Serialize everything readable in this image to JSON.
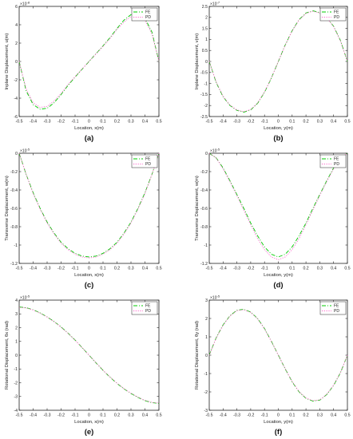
{
  "chart_data": [
    {
      "type": "line",
      "panel_label": "(a)",
      "xlabel": "Location, x(m)",
      "ylabel": "Inplane Displacement, u(m)",
      "scale_label": "×10",
      "scale_exp": "-8",
      "xlim": [
        -0.5,
        0.5
      ],
      "ylim": [
        -6,
        6
      ],
      "xticks": [
        "-0.5",
        "-0.4",
        "-0.3",
        "-0.2",
        "-0.1",
        "0",
        "0.1",
        "0.2",
        "0.3",
        "0.4",
        "0.5"
      ],
      "yticks": [
        "-6",
        "-4",
        "-2",
        "0",
        "2",
        "4",
        "6"
      ],
      "legend": "top-right",
      "series": [
        {
          "name": "FE",
          "color": "#00cc00",
          "dash": "dashdot",
          "x": [
            -0.5,
            -0.45,
            -0.4,
            -0.35,
            -0.3,
            -0.25,
            -0.2,
            -0.15,
            -0.1,
            -0.05,
            0,
            0.05,
            0.1,
            0.15,
            0.2,
            0.25,
            0.3,
            0.35,
            0.4,
            0.45,
            0.5
          ],
          "y": [
            0,
            -3.2,
            -4.7,
            -5.2,
            -5.1,
            -4.5,
            -3.6,
            -2.6,
            -1.7,
            -0.85,
            0,
            0.85,
            1.7,
            2.6,
            3.6,
            4.5,
            5.1,
            5.2,
            4.7,
            3.2,
            0
          ]
        },
        {
          "name": "PD",
          "color": "#ff66cc",
          "dash": "dotted",
          "x": [
            -0.5,
            -0.45,
            -0.4,
            -0.35,
            -0.3,
            -0.25,
            -0.2,
            -0.15,
            -0.1,
            -0.05,
            0,
            0.05,
            0.1,
            0.15,
            0.2,
            0.25,
            0.3,
            0.35,
            0.4,
            0.45,
            0.5
          ],
          "y": [
            0,
            -3.0,
            -4.5,
            -5.0,
            -4.9,
            -4.3,
            -3.5,
            -2.5,
            -1.65,
            -0.82,
            0,
            0.82,
            1.65,
            2.5,
            3.5,
            4.3,
            4.9,
            5.0,
            4.5,
            3.0,
            0
          ]
        }
      ]
    },
    {
      "type": "line",
      "panel_label": "(b)",
      "xlabel": "Location, y(m)",
      "ylabel": "Inplane Displacement, v(m)",
      "scale_label": "×10",
      "scale_exp": "-7",
      "xlim": [
        -0.5,
        0.5
      ],
      "ylim": [
        -2.5,
        2.5
      ],
      "xticks": [
        "-0.5",
        "-0.4",
        "-0.3",
        "-0.2",
        "-0.1",
        "0",
        "0.1",
        "0.2",
        "0.3",
        "0.4",
        "0.5"
      ],
      "yticks": [
        "-2.5",
        "-2",
        "-1.5",
        "-1",
        "-0.5",
        "0",
        "0.5",
        "1",
        "1.5",
        "2",
        "2.5"
      ],
      "legend": "top-right",
      "series": [
        {
          "name": "FE",
          "color": "#00cc00",
          "dash": "dashdot",
          "x": [
            -0.5,
            -0.45,
            -0.4,
            -0.35,
            -0.3,
            -0.25,
            -0.2,
            -0.15,
            -0.1,
            -0.05,
            0,
            0.05,
            0.1,
            0.15,
            0.2,
            0.25,
            0.3,
            0.35,
            0.4,
            0.45,
            0.5
          ],
          "y": [
            0,
            -0.95,
            -1.6,
            -2.0,
            -2.22,
            -2.3,
            -2.2,
            -1.9,
            -1.4,
            -0.75,
            0,
            0.75,
            1.4,
            1.9,
            2.2,
            2.3,
            2.22,
            2.0,
            1.6,
            0.95,
            0
          ]
        },
        {
          "name": "PD",
          "color": "#ff66cc",
          "dash": "dotted",
          "x": [
            -0.5,
            -0.45,
            -0.4,
            -0.35,
            -0.3,
            -0.25,
            -0.2,
            -0.15,
            -0.1,
            -0.05,
            0,
            0.05,
            0.1,
            0.15,
            0.2,
            0.25,
            0.3,
            0.35,
            0.4,
            0.45,
            0.5
          ],
          "y": [
            0,
            -0.93,
            -1.58,
            -1.98,
            -2.2,
            -2.28,
            -2.18,
            -1.88,
            -1.38,
            -0.74,
            0,
            0.74,
            1.38,
            1.88,
            2.18,
            2.28,
            2.2,
            1.98,
            1.58,
            0.93,
            0
          ]
        }
      ]
    },
    {
      "type": "line",
      "panel_label": "(c)",
      "xlabel": "Location, x(m)",
      "ylabel": "Transverse Displacement, w(m)",
      "scale_label": "×10",
      "scale_exp": "-5",
      "xlim": [
        -0.5,
        0.5
      ],
      "ylim": [
        -1.2,
        0
      ],
      "xticks": [
        "-0.5",
        "-0.4",
        "-0.3",
        "-0.2",
        "-0.1",
        "0",
        "0.1",
        "0.2",
        "0.3",
        "0.4",
        "0.5"
      ],
      "yticks": [
        "-1.2",
        "-1",
        "-0.8",
        "-0.6",
        "-0.4",
        "-0.2",
        "0"
      ],
      "legend": "top-right",
      "series": [
        {
          "name": "FE",
          "color": "#00cc00",
          "dash": "dashdot",
          "x": [
            -0.5,
            -0.45,
            -0.4,
            -0.35,
            -0.3,
            -0.25,
            -0.2,
            -0.15,
            -0.1,
            -0.05,
            0,
            0.05,
            0.1,
            0.15,
            0.2,
            0.25,
            0.3,
            0.35,
            0.4,
            0.45,
            0.5
          ],
          "y": [
            0,
            -0.23,
            -0.43,
            -0.6,
            -0.75,
            -0.87,
            -0.97,
            -1.04,
            -1.09,
            -1.12,
            -1.13,
            -1.12,
            -1.09,
            -1.04,
            -0.97,
            -0.87,
            -0.75,
            -0.6,
            -0.43,
            -0.23,
            0
          ]
        },
        {
          "name": "PD",
          "color": "#ff66cc",
          "dash": "dotted",
          "x": [
            -0.5,
            -0.45,
            -0.4,
            -0.35,
            -0.3,
            -0.25,
            -0.2,
            -0.15,
            -0.1,
            -0.05,
            0,
            0.05,
            0.1,
            0.15,
            0.2,
            0.25,
            0.3,
            0.35,
            0.4,
            0.45,
            0.5
          ],
          "y": [
            0,
            -0.23,
            -0.44,
            -0.61,
            -0.76,
            -0.88,
            -0.98,
            -1.05,
            -1.1,
            -1.13,
            -1.14,
            -1.13,
            -1.1,
            -1.05,
            -0.98,
            -0.88,
            -0.76,
            -0.61,
            -0.44,
            -0.23,
            0
          ]
        }
      ]
    },
    {
      "type": "line",
      "panel_label": "(d)",
      "xlabel": "Location, y(m)",
      "ylabel": "Transverse Displacement, w(m)",
      "scale_label": "×10",
      "scale_exp": "-5",
      "xlim": [
        -0.5,
        0.5
      ],
      "ylim": [
        -1.2,
        0
      ],
      "xticks": [
        "-0.5",
        "-0.4",
        "-0.3",
        "-0.2",
        "-0.1",
        "0",
        "0.1",
        "0.2",
        "0.3",
        "0.4",
        "0.5"
      ],
      "yticks": [
        "-1.2",
        "-1",
        "-0.8",
        "-0.6",
        "-0.4",
        "-0.2",
        "0"
      ],
      "legend": "top-right",
      "series": [
        {
          "name": "FE",
          "color": "#00cc00",
          "dash": "dashdot",
          "x": [
            -0.5,
            -0.45,
            -0.4,
            -0.35,
            -0.3,
            -0.25,
            -0.2,
            -0.15,
            -0.1,
            -0.05,
            0,
            0.05,
            0.1,
            0.15,
            0.2,
            0.25,
            0.3,
            0.35,
            0.4,
            0.45,
            0.5
          ],
          "y": [
            0,
            -0.05,
            -0.16,
            -0.3,
            -0.45,
            -0.6,
            -0.76,
            -0.9,
            -1.02,
            -1.1,
            -1.13,
            -1.1,
            -1.02,
            -0.9,
            -0.76,
            -0.6,
            -0.45,
            -0.3,
            -0.16,
            -0.05,
            0
          ]
        },
        {
          "name": "PD",
          "color": "#ff66cc",
          "dash": "dotted",
          "x": [
            -0.5,
            -0.45,
            -0.4,
            -0.35,
            -0.3,
            -0.25,
            -0.2,
            -0.15,
            -0.1,
            -0.05,
            0,
            0.05,
            0.1,
            0.15,
            0.2,
            0.25,
            0.3,
            0.35,
            0.4,
            0.45,
            0.5
          ],
          "y": [
            0,
            -0.05,
            -0.17,
            -0.31,
            -0.46,
            -0.62,
            -0.78,
            -0.93,
            -1.05,
            -1.13,
            -1.16,
            -1.13,
            -1.05,
            -0.93,
            -0.78,
            -0.62,
            -0.46,
            -0.31,
            -0.17,
            -0.05,
            0
          ]
        }
      ]
    },
    {
      "type": "line",
      "panel_label": "(e)",
      "xlabel": "Location, x(m)",
      "ylabel": "Rotational Displacement, θx (rad)",
      "scale_label": "×10",
      "scale_exp": "-5",
      "xlim": [
        -0.5,
        0.5
      ],
      "ylim": [
        -4,
        4
      ],
      "xticks": [
        "-0.5",
        "-0.4",
        "-0.3",
        "-0.2",
        "-0.1",
        "0",
        "0.1",
        "0.2",
        "0.3",
        "0.4",
        "0.5"
      ],
      "yticks": [
        "-4",
        "-3",
        "-2",
        "-1",
        "0",
        "1",
        "2",
        "3",
        "4"
      ],
      "legend": "top-right",
      "series": [
        {
          "name": "FE",
          "color": "#00cc00",
          "dash": "dashdot",
          "x": [
            -0.5,
            -0.45,
            -0.4,
            -0.35,
            -0.3,
            -0.25,
            -0.2,
            -0.15,
            -0.1,
            -0.05,
            0,
            0.05,
            0.1,
            0.15,
            0.2,
            0.25,
            0.3,
            0.35,
            0.4,
            0.45,
            0.5
          ],
          "y": [
            3.5,
            3.45,
            3.3,
            3.07,
            2.78,
            2.45,
            2.05,
            1.6,
            1.1,
            0.56,
            0,
            -0.56,
            -1.1,
            -1.6,
            -2.05,
            -2.45,
            -2.78,
            -3.07,
            -3.3,
            -3.45,
            -3.5
          ]
        },
        {
          "name": "PD",
          "color": "#ff66cc",
          "dash": "dotted",
          "x": [
            -0.5,
            -0.45,
            -0.4,
            -0.35,
            -0.3,
            -0.25,
            -0.2,
            -0.15,
            -0.1,
            -0.05,
            0,
            0.05,
            0.1,
            0.15,
            0.2,
            0.25,
            0.3,
            0.35,
            0.4,
            0.45,
            0.5
          ],
          "y": [
            3.48,
            3.43,
            3.28,
            3.05,
            2.76,
            2.43,
            2.03,
            1.58,
            1.09,
            0.55,
            0,
            -0.55,
            -1.09,
            -1.58,
            -2.03,
            -2.43,
            -2.76,
            -3.05,
            -3.28,
            -3.43,
            -3.48
          ]
        }
      ]
    },
    {
      "type": "line",
      "panel_label": "(f)",
      "xlabel": "Location, y(m)",
      "ylabel": "Rotational Displacement, θy (rad)",
      "scale_label": "×10",
      "scale_exp": "-5",
      "xlim": [
        -0.5,
        0.5
      ],
      "ylim": [
        -3,
        3
      ],
      "xticks": [
        "-0.5",
        "-0.4",
        "-0.3",
        "-0.2",
        "-0.1",
        "0",
        "0.1",
        "0.2",
        "0.3",
        "0.4",
        "0.5"
      ],
      "yticks": [
        "-3",
        "-2",
        "-1",
        "0",
        "1",
        "2",
        "3"
      ],
      "legend": "top-right",
      "series": [
        {
          "name": "FE",
          "color": "#00cc00",
          "dash": "dashdot",
          "x": [
            -0.5,
            -0.45,
            -0.4,
            -0.35,
            -0.3,
            -0.25,
            -0.2,
            -0.15,
            -0.1,
            -0.05,
            0,
            0.05,
            0.1,
            0.15,
            0.2,
            0.25,
            0.3,
            0.35,
            0.4,
            0.45,
            0.5
          ],
          "y": [
            0,
            0.95,
            1.65,
            2.15,
            2.45,
            2.5,
            2.35,
            2.0,
            1.45,
            0.75,
            0,
            -0.75,
            -1.45,
            -2.0,
            -2.35,
            -2.5,
            -2.45,
            -2.15,
            -1.65,
            -0.95,
            0
          ]
        },
        {
          "name": "PD",
          "color": "#ff66cc",
          "dash": "dotted",
          "x": [
            -0.5,
            -0.45,
            -0.4,
            -0.35,
            -0.3,
            -0.25,
            -0.2,
            -0.15,
            -0.1,
            -0.05,
            0,
            0.05,
            0.1,
            0.15,
            0.2,
            0.25,
            0.3,
            0.35,
            0.4,
            0.45,
            0.5
          ],
          "y": [
            0,
            0.93,
            1.63,
            2.13,
            2.43,
            2.48,
            2.33,
            1.98,
            1.43,
            0.74,
            0,
            -0.74,
            -1.43,
            -1.98,
            -2.33,
            -2.48,
            -2.43,
            -2.13,
            -1.63,
            -0.93,
            0
          ]
        }
      ]
    }
  ]
}
